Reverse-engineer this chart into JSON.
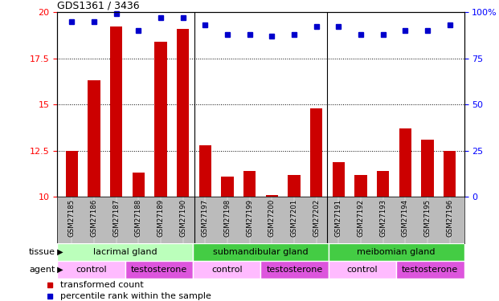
{
  "title": "GDS1361 / 3436",
  "samples": [
    "GSM27185",
    "GSM27186",
    "GSM27187",
    "GSM27188",
    "GSM27189",
    "GSM27190",
    "GSM27197",
    "GSM27198",
    "GSM27199",
    "GSM27200",
    "GSM27201",
    "GSM27202",
    "GSM27191",
    "GSM27192",
    "GSM27193",
    "GSM27194",
    "GSM27195",
    "GSM27196"
  ],
  "red_values": [
    12.5,
    16.3,
    19.2,
    11.3,
    18.4,
    19.1,
    12.8,
    11.1,
    11.4,
    10.1,
    11.2,
    14.8,
    11.9,
    11.2,
    11.4,
    13.7,
    13.1,
    12.5
  ],
  "blue_values": [
    95,
    95,
    99,
    90,
    97,
    97,
    93,
    88,
    88,
    87,
    88,
    92,
    92,
    88,
    88,
    90,
    90,
    93
  ],
  "ylim_left": [
    10,
    20
  ],
  "ylim_right": [
    0,
    100
  ],
  "yticks_left": [
    10,
    12.5,
    15,
    17.5,
    20
  ],
  "ytick_labels_left": [
    "10",
    "12.5",
    "15",
    "17.5",
    "20"
  ],
  "yticks_right": [
    0,
    25,
    50,
    75,
    100
  ],
  "ytick_labels_right": [
    "0",
    "25",
    "50",
    "75",
    "100%"
  ],
  "bar_color": "#cc0000",
  "dot_color": "#0000cc",
  "tissue_groups": [
    {
      "label": "lacrimal gland",
      "start": 0,
      "end": 6,
      "color": "#bbffbb"
    },
    {
      "label": "submandibular gland",
      "start": 6,
      "end": 12,
      "color": "#44cc44"
    },
    {
      "label": "meibomian gland",
      "start": 12,
      "end": 18,
      "color": "#44cc44"
    }
  ],
  "agent_groups": [
    {
      "label": "control",
      "start": 0,
      "end": 3,
      "color": "#ffbbff"
    },
    {
      "label": "testosterone",
      "start": 3,
      "end": 6,
      "color": "#dd55dd"
    },
    {
      "label": "control",
      "start": 6,
      "end": 9,
      "color": "#ffbbff"
    },
    {
      "label": "testosterone",
      "start": 9,
      "end": 12,
      "color": "#dd55dd"
    },
    {
      "label": "control",
      "start": 12,
      "end": 15,
      "color": "#ffbbff"
    },
    {
      "label": "testosterone",
      "start": 15,
      "end": 18,
      "color": "#dd55dd"
    }
  ],
  "tissue_label": "tissue",
  "agent_label": "agent",
  "legend_red": "transformed count",
  "legend_blue": "percentile rank within the sample",
  "sample_bg_color": "#bbbbbb",
  "fig_width": 6.21,
  "fig_height": 3.75
}
